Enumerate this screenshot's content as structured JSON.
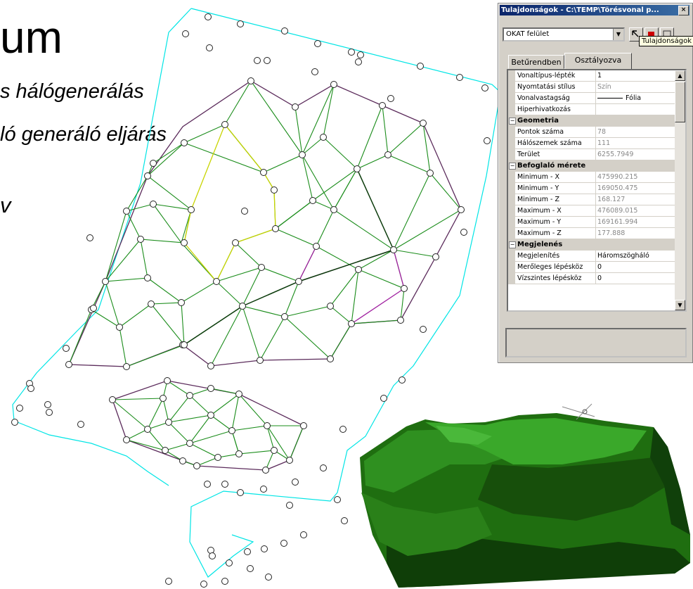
{
  "slide": {
    "title": "um",
    "subtitle_1": "s hálógenerálás",
    "subtitle_2": "ló generáló eljárás",
    "fragment": "v"
  },
  "properties_window": {
    "title": "Tulajdonságok - C:\\TEMP\\Törésvonal p...",
    "close_label": "×",
    "combo_value": "OKAT felület",
    "tooltip": "Tulajdonságok",
    "tabs": [
      {
        "label": "Betűrendben"
      },
      {
        "label": "Osztályozva"
      }
    ],
    "rows_general": [
      {
        "name": "Vonaltípus-lépték",
        "value": "1"
      },
      {
        "name": "Nyomtatási stílus",
        "value": "Szín"
      },
      {
        "name": "Vonalvastagság",
        "value": "Fólia"
      },
      {
        "name": "Hiperhivatkozás",
        "value": ""
      }
    ],
    "cat_geometry": "Geometria",
    "rows_geometry": [
      {
        "name": "Pontok száma",
        "value": "78"
      },
      {
        "name": "Hálószemek száma",
        "value": "111"
      },
      {
        "name": "Terület",
        "value": "6255.7949"
      }
    ],
    "cat_bounds": "Befoglaló mérete",
    "rows_bounds": [
      {
        "name": "Minimum - X",
        "value": "475990.215"
      },
      {
        "name": "Minimum - Y",
        "value": "169050.475"
      },
      {
        "name": "Minimum - Z",
        "value": "168.127"
      },
      {
        "name": "Maximum - X",
        "value": "476089.015"
      },
      {
        "name": "Maximum - Y",
        "value": "169161.994"
      },
      {
        "name": "Maximum - Z",
        "value": "177.888"
      }
    ],
    "cat_display": "Megjelenés",
    "rows_display": [
      {
        "name": "Megjelenítés",
        "value": "Háromszögháló"
      },
      {
        "name": "Merőleges lépésköz",
        "value": "0"
      },
      {
        "name": "Vízszintes lépésköz",
        "value": "0"
      }
    ],
    "collapse_symbol": "−"
  },
  "colors": {
    "boundary": "#00e5e5",
    "mesh": "#1a8c1a",
    "hull": "#5b2b5b",
    "breakline_yellow": "#c8d400",
    "breakline_purple": "#a020a0",
    "surface": "#1f6e10"
  }
}
